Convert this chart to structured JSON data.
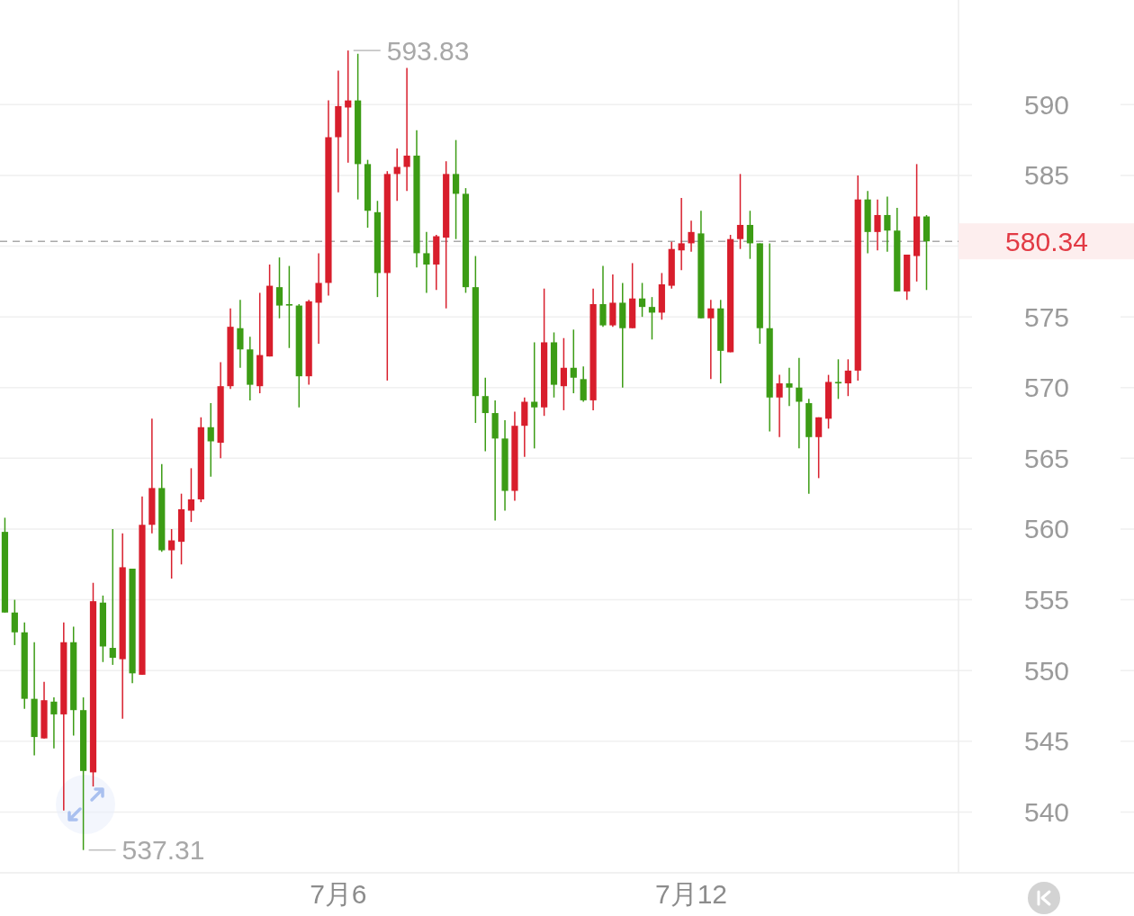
{
  "chart_data": {
    "type": "candlestick",
    "categories": [
      null,
      null,
      null,
      null,
      null,
      null,
      null,
      null,
      null,
      null,
      null,
      null,
      null,
      null,
      null,
      null,
      null,
      null,
      null,
      null,
      null,
      null,
      null,
      null,
      null,
      null,
      null,
      null,
      null,
      null,
      null,
      null,
      null,
      null,
      "7月6",
      null,
      null,
      null,
      null,
      null,
      null,
      null,
      null,
      null,
      null,
      null,
      null,
      null,
      null,
      null,
      null,
      null,
      null,
      null,
      null,
      null,
      null,
      null,
      null,
      null,
      null,
      null,
      null,
      null,
      null,
      null,
      null,
      null,
      null,
      null,
      "7月12",
      null,
      null,
      null,
      null,
      null,
      null,
      null,
      null,
      null,
      null,
      null,
      null,
      null,
      null,
      null,
      null,
      null,
      null,
      null,
      null,
      null,
      null,
      null,
      null
    ],
    "ohlc": [
      [
        559.8,
        560.8,
        554.1,
        554.1
      ],
      [
        554.1,
        555.0,
        551.8,
        552.7
      ],
      [
        552.7,
        553.4,
        547.3,
        548.0
      ],
      [
        548.0,
        552.0,
        544.0,
        545.3
      ],
      [
        545.2,
        549.2,
        545.2,
        547.9
      ],
      [
        547.8,
        548.1,
        544.5,
        546.9
      ],
      [
        546.9,
        553.4,
        540.1,
        552.0
      ],
      [
        552.0,
        553.1,
        545.4,
        547.2
      ],
      [
        547.2,
        548.1,
        537.31,
        542.9
      ],
      [
        542.8,
        556.2,
        541.8,
        554.9
      ],
      [
        554.8,
        555.3,
        550.6,
        551.7
      ],
      [
        551.6,
        560.0,
        550.4,
        550.9
      ],
      [
        550.8,
        559.7,
        546.6,
        557.3
      ],
      [
        557.2,
        557.2,
        549.1,
        549.8
      ],
      [
        549.7,
        562.3,
        549.7,
        560.3
      ],
      [
        560.3,
        567.8,
        559.7,
        562.9
      ],
      [
        562.9,
        564.6,
        558.4,
        558.5
      ],
      [
        558.5,
        560.0,
        556.5,
        559.2
      ],
      [
        559.1,
        562.5,
        557.5,
        561.4
      ],
      [
        561.3,
        564.3,
        560.5,
        562.1
      ],
      [
        562.1,
        567.9,
        561.9,
        567.2
      ],
      [
        567.2,
        568.9,
        563.7,
        566.2
      ],
      [
        566.1,
        571.8,
        565.0,
        570.1
      ],
      [
        570.1,
        575.6,
        569.9,
        574.3
      ],
      [
        574.2,
        576.2,
        571.4,
        572.7
      ],
      [
        572.7,
        573.6,
        569.1,
        570.2
      ],
      [
        570.1,
        576.7,
        569.6,
        572.3
      ],
      [
        572.2,
        578.7,
        572.2,
        577.2
      ],
      [
        577.1,
        579.2,
        574.9,
        575.8
      ],
      [
        575.9,
        578.6,
        572.8,
        575.8
      ],
      [
        575.8,
        575.9,
        568.6,
        570.8
      ],
      [
        570.8,
        576.2,
        570.2,
        576.1
      ],
      [
        576.0,
        579.5,
        573.1,
        577.4
      ],
      [
        577.4,
        590.3,
        576.5,
        587.7
      ],
      [
        587.7,
        592.4,
        583.8,
        589.9
      ],
      [
        589.8,
        593.83,
        585.9,
        590.3
      ],
      [
        590.3,
        593.6,
        583.3,
        585.8
      ],
      [
        585.8,
        586.1,
        581.3,
        582.5
      ],
      [
        582.4,
        583.2,
        576.4,
        578.1
      ],
      [
        578.1,
        585.3,
        570.5,
        585.1
      ],
      [
        585.1,
        586.9,
        583.2,
        585.6
      ],
      [
        585.6,
        592.6,
        583.9,
        586.4
      ],
      [
        586.4,
        588.2,
        578.5,
        579.5
      ],
      [
        579.5,
        581.0,
        576.7,
        578.7
      ],
      [
        578.7,
        580.8,
        576.9,
        580.7
      ],
      [
        580.6,
        586.0,
        575.6,
        585.1
      ],
      [
        585.1,
        587.5,
        580.5,
        583.7
      ],
      [
        583.7,
        584.1,
        576.7,
        577.1
      ],
      [
        577.1,
        579.3,
        567.5,
        569.4
      ],
      [
        569.4,
        570.7,
        565.5,
        568.2
      ],
      [
        568.2,
        569.1,
        560.6,
        566.4
      ],
      [
        566.4,
        567.7,
        561.3,
        562.7
      ],
      [
        562.7,
        568.3,
        562.0,
        567.3
      ],
      [
        567.3,
        569.3,
        565.1,
        569.0
      ],
      [
        569.0,
        573.2,
        565.7,
        568.6
      ],
      [
        568.6,
        577.0,
        568.0,
        573.2
      ],
      [
        573.2,
        573.9,
        569.3,
        570.2
      ],
      [
        570.1,
        573.5,
        568.4,
        571.4
      ],
      [
        571.4,
        574.1,
        569.6,
        570.7
      ],
      [
        570.6,
        571.5,
        569.0,
        569.1
      ],
      [
        569.1,
        577.0,
        568.4,
        575.9
      ],
      [
        575.9,
        578.6,
        574.3,
        574.4
      ],
      [
        574.4,
        578.0,
        574.3,
        576.0
      ],
      [
        576.0,
        577.4,
        570.0,
        574.2
      ],
      [
        574.2,
        578.8,
        574.2,
        576.3
      ],
      [
        576.3,
        577.4,
        575.0,
        575.7
      ],
      [
        575.7,
        576.4,
        573.4,
        575.3
      ],
      [
        575.3,
        578.1,
        574.8,
        577.3
      ],
      [
        577.2,
        580.3,
        577.0,
        579.8
      ],
      [
        579.7,
        583.4,
        578.3,
        580.2
      ],
      [
        580.2,
        581.8,
        579.6,
        581.0
      ],
      [
        580.9,
        582.5,
        574.9,
        574.9
      ],
      [
        574.9,
        576.2,
        570.6,
        575.6
      ],
      [
        575.6,
        576.2,
        570.3,
        572.6
      ],
      [
        572.5,
        580.8,
        572.5,
        580.5
      ],
      [
        580.5,
        585.1,
        579.8,
        581.5
      ],
      [
        581.5,
        582.5,
        579.1,
        580.2
      ],
      [
        580.2,
        580.2,
        573.1,
        574.2
      ],
      [
        574.2,
        580.2,
        566.9,
        569.3
      ],
      [
        569.3,
        570.9,
        566.5,
        570.3
      ],
      [
        570.3,
        571.4,
        568.7,
        570.0
      ],
      [
        570.0,
        572.1,
        565.7,
        569.0
      ],
      [
        568.9,
        569.2,
        562.5,
        566.5
      ],
      [
        566.5,
        567.9,
        563.6,
        567.9
      ],
      [
        567.8,
        570.9,
        567.1,
        570.4
      ],
      [
        570.4,
        572.0,
        569.2,
        570.3
      ],
      [
        570.3,
        572.0,
        569.4,
        571.2
      ],
      [
        571.2,
        585.0,
        570.5,
        583.3
      ],
      [
        583.3,
        583.9,
        579.5,
        581.0
      ],
      [
        581.0,
        583.3,
        579.7,
        582.2
      ],
      [
        582.2,
        583.5,
        579.6,
        581.1
      ],
      [
        581.1,
        582.7,
        576.8,
        576.8
      ],
      [
        576.8,
        579.4,
        576.2,
        579.4
      ],
      [
        579.3,
        585.8,
        577.5,
        582.1
      ],
      [
        582.1,
        582.2,
        576.9,
        580.34
      ]
    ],
    "colors": [
      "#3c9c15",
      "#3c9c15",
      "#3c9c15",
      "#3c9c15",
      "#d81e2c",
      "#3c9c15",
      "#d81e2c",
      "#3c9c15",
      "#3c9c15",
      "#d81e2c",
      "#3c9c15",
      "#3c9c15",
      "#d81e2c",
      "#3c9c15",
      "#d81e2c",
      "#d81e2c",
      "#3c9c15",
      "#d81e2c",
      "#d81e2c",
      "#d81e2c",
      "#d81e2c",
      "#3c9c15",
      "#d81e2c",
      "#d81e2c",
      "#3c9c15",
      "#3c9c15",
      "#d81e2c",
      "#d81e2c",
      "#3c9c15",
      "#3c9c15",
      "#3c9c15",
      "#d81e2c",
      "#d81e2c",
      "#d81e2c",
      "#d81e2c",
      "#d81e2c",
      "#3c9c15",
      "#3c9c15",
      "#3c9c15",
      "#d81e2c",
      "#d81e2c",
      "#d81e2c",
      "#3c9c15",
      "#3c9c15",
      "#d81e2c",
      "#d81e2c",
      "#3c9c15",
      "#3c9c15",
      "#3c9c15",
      "#3c9c15",
      "#3c9c15",
      "#3c9c15",
      "#d81e2c",
      "#d81e2c",
      "#3c9c15",
      "#d81e2c",
      "#3c9c15",
      "#d81e2c",
      "#3c9c15",
      "#3c9c15",
      "#d81e2c",
      "#3c9c15",
      "#d81e2c",
      "#3c9c15",
      "#d81e2c",
      "#3c9c15",
      "#3c9c15",
      "#d81e2c",
      "#d81e2c",
      "#d81e2c",
      "#d81e2c",
      "#3c9c15",
      "#d81e2c",
      "#3c9c15",
      "#d81e2c",
      "#d81e2c",
      "#3c9c15",
      "#3c9c15",
      "#3c9c15",
      "#d81e2c",
      "#3c9c15",
      "#3c9c15",
      "#3c9c15",
      "#d81e2c",
      "#d81e2c",
      "#3c9c15",
      "#d81e2c",
      "#d81e2c",
      "#3c9c15",
      "#d81e2c",
      "#3c9c15",
      "#3c9c15",
      "#d81e2c",
      "#d81e2c",
      "#3c9c15"
    ],
    "ylim": [
      535.7,
      597.4
    ],
    "yticks": [
      540,
      545,
      550,
      555,
      560,
      565,
      570,
      575,
      {
        "value": 580,
        "label": null
      },
      585,
      590
    ],
    "grid": "y",
    "ref_lines": [
      {
        "axis": "y",
        "value": 580.34,
        "label": "580.34",
        "color": "#a9a9a9",
        "line_style": "dashed"
      }
    ],
    "annotations": [
      "593.83",
      "537.31"
    ]
  }
}
